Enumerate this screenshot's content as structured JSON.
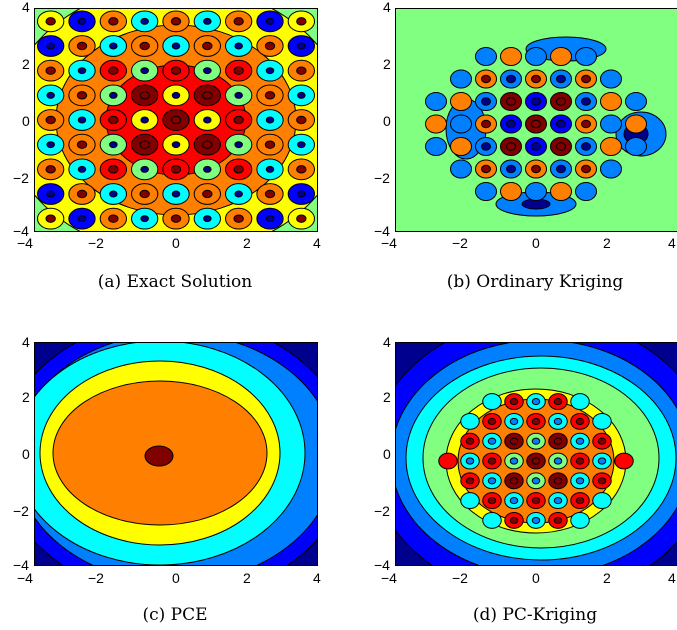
{
  "colors": {
    "levels": [
      "#00008f",
      "#0000ff",
      "#0080ff",
      "#00ffff",
      "#80ff80",
      "#ffff00",
      "#ff8000",
      "#ff0000",
      "#800000"
    ],
    "contour_line": "#000000"
  },
  "chart_data": [
    {
      "type": "contour",
      "caption": "(a)  Exact Solution",
      "function": "sin(pi*x)*sin(pi*y)-like checkerboard pattern with central maximum",
      "xlim": [
        -4,
        4
      ],
      "ylim": [
        -4,
        4
      ],
      "xticks": [
        "−4",
        "−2",
        "0",
        "2",
        "4"
      ],
      "yticks": [
        "−4",
        "−2",
        "0",
        "2",
        "4"
      ]
    },
    {
      "type": "contour",
      "caption": "(b)  Ordinary Kriging",
      "xlim": [
        -4,
        4
      ],
      "ylim": [
        -4,
        4
      ],
      "xticks": [
        "−4",
        "−2",
        "0",
        "2",
        "4"
      ],
      "yticks": [
        "−4",
        "−2",
        "0",
        "2",
        "4"
      ]
    },
    {
      "type": "contour",
      "caption": "(c)  PCE",
      "xlim": [
        -4,
        4
      ],
      "ylim": [
        -4,
        4
      ],
      "xticks": [
        "−4",
        "−2",
        "0",
        "2",
        "4"
      ],
      "yticks": [
        "−4",
        "−2",
        "0",
        "2",
        "4"
      ]
    },
    {
      "type": "contour",
      "caption": "(d)  PC-Kriging",
      "xlim": [
        -4,
        4
      ],
      "ylim": [
        -4,
        4
      ],
      "xticks": [
        "−4",
        "−2",
        "0",
        "2",
        "4"
      ],
      "yticks": [
        "−4",
        "−2",
        "0",
        "2",
        "4"
      ]
    }
  ]
}
